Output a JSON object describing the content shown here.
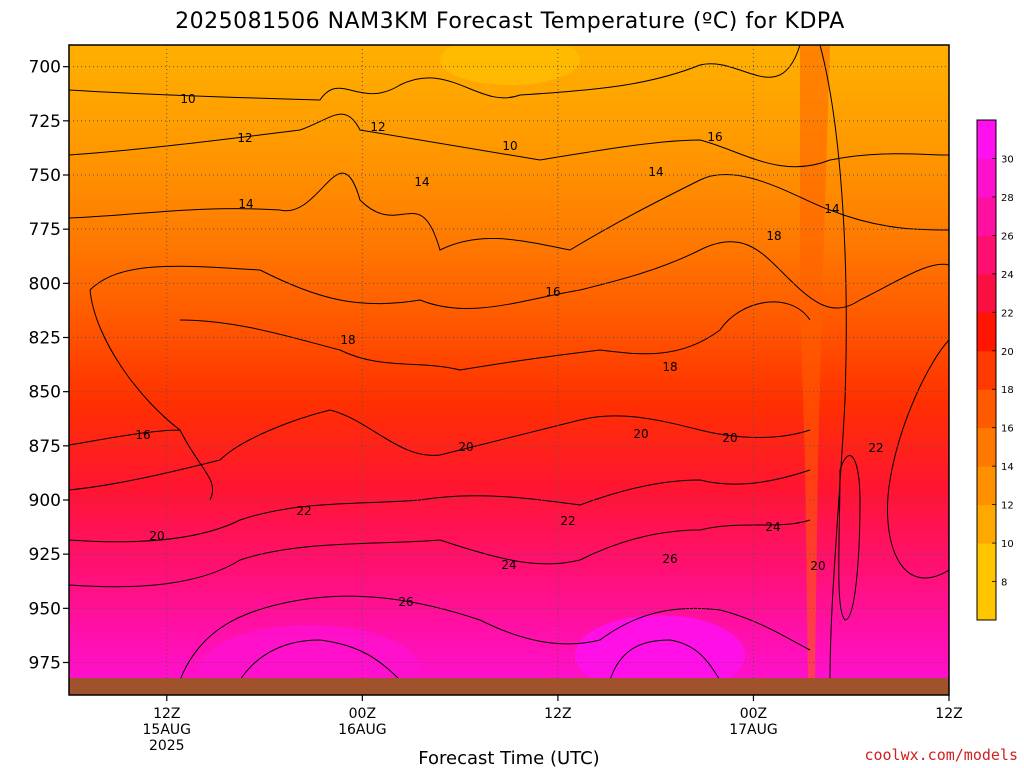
{
  "chart_data": {
    "type": "heatmap",
    "title": "2025081506 NAM3KM Forecast Temperature (ºC) for KDPA",
    "xlabel": "Forecast Time (UTC)",
    "ylabel": "",
    "y_axis": {
      "ticks": [
        "700",
        "725",
        "750",
        "775",
        "800",
        "825",
        "850",
        "875",
        "900",
        "925",
        "950",
        "975"
      ],
      "range": [
        690,
        990
      ],
      "inverted": true
    },
    "x_axis": {
      "ticks": [
        {
          "line1": "12Z",
          "line2": "15AUG",
          "line3": "2025"
        },
        {
          "line1": "00Z",
          "line2": "16AUG",
          "line3": ""
        },
        {
          "line1": "12Z",
          "line2": "",
          "line3": ""
        },
        {
          "line1": "00Z",
          "line2": "17AUG",
          "line3": ""
        },
        {
          "line1": "12Z",
          "line2": "",
          "line3": ""
        }
      ],
      "range_hours": [
        6,
        60
      ],
      "tick_hours": [
        12,
        24,
        36,
        48,
        60
      ]
    },
    "colorbar": {
      "levels": [
        "8",
        "10",
        "12",
        "14",
        "16",
        "18",
        "20",
        "22",
        "24",
        "26",
        "28",
        "30"
      ],
      "colors": [
        "#ffc600",
        "#ffa800",
        "#ff9000",
        "#ff7800",
        "#ff5a00",
        "#ff3a00",
        "#ff1500",
        "#fa1040",
        "#ff1070",
        "#ff10a0",
        "#ff10cc",
        "#ff10ee"
      ]
    },
    "contour_labels": [
      "10",
      "12",
      "10",
      "12",
      "14",
      "14",
      "16",
      "14",
      "14",
      "16",
      "18",
      "18",
      "18",
      "16",
      "20",
      "20",
      "20",
      "22",
      "20",
      "22",
      "22",
      "24",
      "24",
      "26",
      "26",
      "20"
    ],
    "grid": true,
    "legend": "colorbar-right"
  },
  "credit": "coolwx.com/models"
}
